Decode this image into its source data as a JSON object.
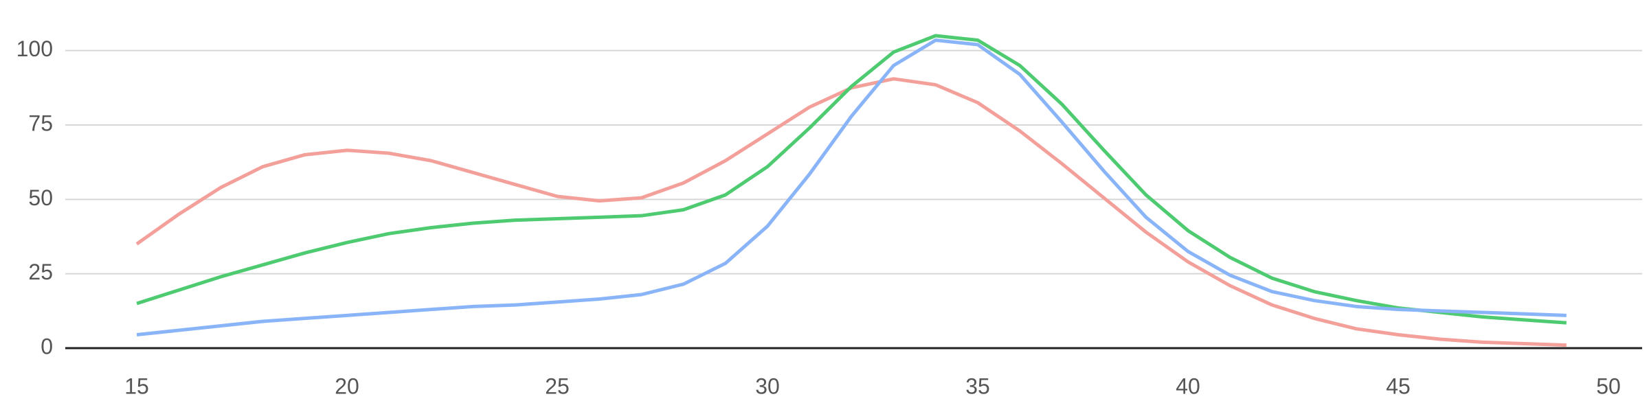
{
  "chart_data": {
    "type": "line",
    "x": [
      15,
      16,
      17,
      18,
      19,
      20,
      21,
      22,
      23,
      24,
      25,
      26,
      27,
      28,
      29,
      30,
      31,
      32,
      33,
      34,
      35,
      36,
      37,
      38,
      39,
      40,
      41,
      42,
      43,
      44,
      45,
      46,
      47,
      48,
      49
    ],
    "series": [
      {
        "color": "#f4a09a",
        "values": [
          35,
          45,
          54,
          61,
          65,
          66.5,
          65.5,
          63,
          59,
          55,
          51,
          49.5,
          50.5,
          55.5,
          63,
          72,
          81,
          87.5,
          90.5,
          88.5,
          82.5,
          73,
          62,
          50.5,
          39,
          29,
          21,
          14.5,
          10,
          6.5,
          4.5,
          3,
          2,
          1.5,
          1
        ]
      },
      {
        "color": "#4ecb71",
        "values": [
          15,
          19.5,
          24,
          28,
          32,
          35.5,
          38.5,
          40.5,
          42,
          43,
          43.5,
          44,
          44.5,
          46.5,
          51.5,
          61,
          74,
          88,
          99.5,
          105,
          103.5,
          95,
          82,
          66.5,
          51.5,
          39.5,
          30.5,
          23.5,
          19,
          16,
          13.5,
          12,
          10.5,
          9.5,
          8.5
        ]
      },
      {
        "color": "#8ab4f8",
        "values": [
          4.5,
          6,
          7.5,
          9,
          10,
          11,
          12,
          13,
          14,
          14.5,
          15.5,
          16.5,
          18,
          21.5,
          28.5,
          41,
          58.5,
          78,
          95,
          103.5,
          102,
          92,
          76,
          59.5,
          44,
          32.5,
          24.5,
          19,
          16,
          14,
          13,
          12.5,
          12,
          11.5,
          11
        ]
      }
    ],
    "xlim": [
      13.3,
      50.8
    ],
    "xticks": [
      15,
      20,
      25,
      30,
      35,
      40,
      45,
      50
    ],
    "ylim": [
      0,
      117
    ],
    "yticks": [
      0,
      25,
      50,
      75,
      100
    ],
    "grid": true
  }
}
